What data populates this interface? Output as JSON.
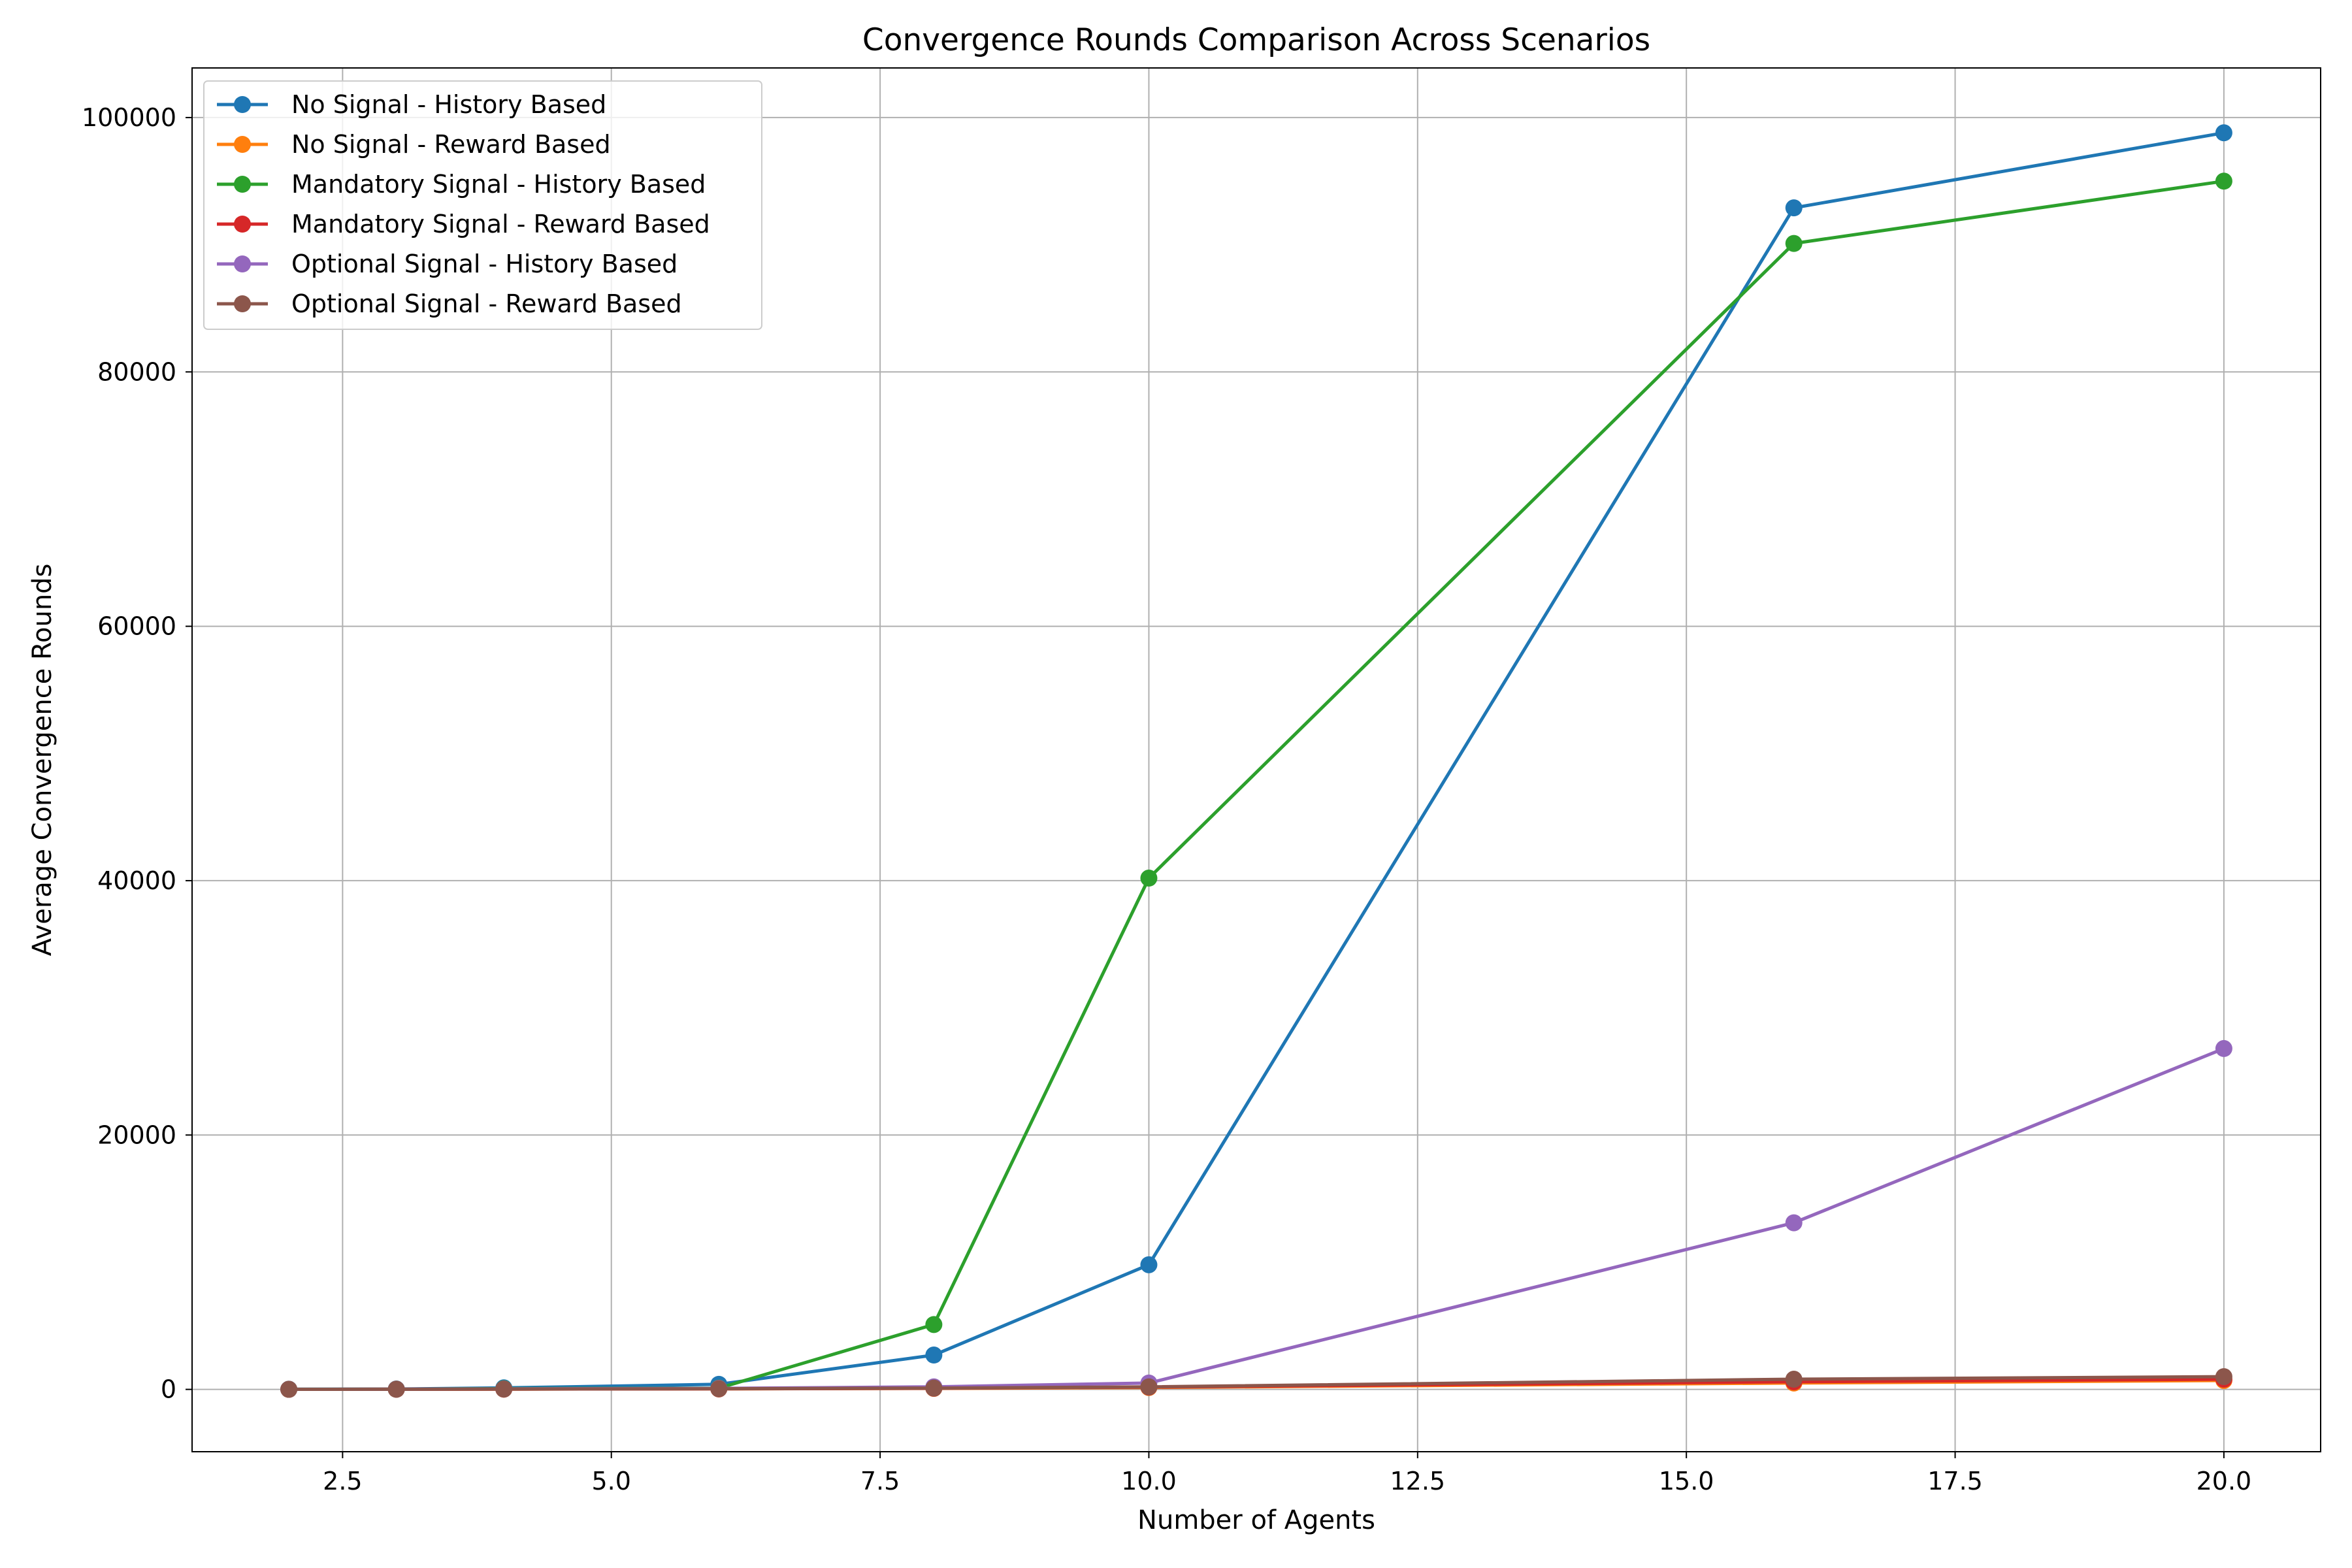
{
  "chart_data": {
    "type": "line",
    "title": "Convergence Rounds Comparison Across Scenarios",
    "xlabel": "Number of Agents",
    "ylabel": "Average Convergence Rounds",
    "x": [
      2,
      3,
      4,
      6,
      8,
      10,
      16,
      20
    ],
    "xlim": [
      1.1,
      20.9
    ],
    "ylim": [
      -4900,
      103900
    ],
    "xticks": [
      2.5,
      5.0,
      7.5,
      10.0,
      12.5,
      15.0,
      17.5,
      20.0
    ],
    "xtick_labels": [
      "2.5",
      "5.0",
      "7.5",
      "10.0",
      "12.5",
      "15.0",
      "17.5",
      "20.0"
    ],
    "yticks": [
      0,
      20000,
      40000,
      60000,
      80000,
      100000
    ],
    "ytick_labels": [
      "0",
      "20000",
      "40000",
      "60000",
      "80000",
      "100000"
    ],
    "grid": true,
    "legend_position": "upper-left",
    "series": [
      {
        "name": "No Signal - History Based",
        "color": "#1f77b4",
        "values": [
          10,
          30,
          120,
          400,
          2700,
          9800,
          92900,
          98800
        ]
      },
      {
        "name": "No Signal - Reward Based",
        "color": "#ff7f0e",
        "values": [
          5,
          10,
          20,
          40,
          80,
          150,
          500,
          700
        ]
      },
      {
        "name": "Mandatory Signal - History Based",
        "color": "#2ca02c",
        "values": [
          10,
          20,
          60,
          100,
          5100,
          40200,
          90100,
          95000
        ]
      },
      {
        "name": "Mandatory Signal - Reward Based",
        "color": "#d62728",
        "values": [
          5,
          10,
          20,
          40,
          90,
          180,
          600,
          800
        ]
      },
      {
        "name": "Optional Signal - History Based",
        "color": "#9467bd",
        "values": [
          10,
          20,
          40,
          80,
          200,
          500,
          13100,
          26800
        ]
      },
      {
        "name": "Optional Signal - Reward Based",
        "color": "#8c564b",
        "values": [
          5,
          10,
          25,
          50,
          100,
          200,
          800,
          1000
        ]
      }
    ]
  }
}
